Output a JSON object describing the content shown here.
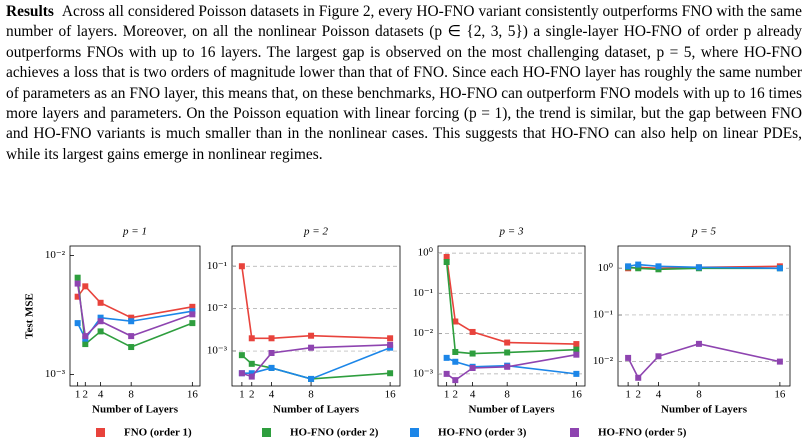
{
  "text": {
    "heading": "Results",
    "body": "Across all considered Poisson datasets in Figure 2, every HO-FNO variant consistently outperforms FNO with the same number of layers. Moreover, on all the nonlinear Poisson datasets (p ∈ {2, 3, 5}) a single-layer HO-FNO of order p already outperforms FNOs with up to 16 layers. The largest gap is observed on the most challenging dataset, p = 5, where HO-FNO achieves a loss that is two orders of magnitude lower than that of FNO. Since each HO-FNO layer has roughly the same number of parameters as an FNO layer, this means that, on these benchmarks, HO-FNO can outperform FNO models with up to 16 times more layers and parameters. On the Poisson equation with linear forcing (p = 1), the trend is similar, but the gap between FNO and HO-FNO variants is much smaller than in the nonlinear cases. This suggests that HO-FNO can also help on linear PDEs, while its largest gains emerge in nonlinear regimes."
  },
  "chart_data": [
    {
      "type": "line",
      "title": "p = 1",
      "xlabel": "Number of Layers",
      "ylabel": "Test MSE",
      "log_y": true,
      "grid": false,
      "x": [
        1,
        2,
        4,
        8,
        16
      ],
      "xlim": [
        0,
        17
      ],
      "xticks": [
        1,
        2,
        4,
        8,
        16
      ],
      "ylim": [
        0.0008,
        0.012
      ],
      "yticks": [
        {
          "value": 0.01,
          "label": "10⁻²"
        },
        {
          "value": 0.001,
          "label": "10⁻³"
        }
      ],
      "series": [
        {
          "name": "FNO (order 1)",
          "color": "#e8433c",
          "values": [
            0.0045,
            0.0055,
            0.004,
            0.003,
            0.0037
          ]
        },
        {
          "name": "HO-FNO (order 2)",
          "color": "#2e9e3e",
          "values": [
            0.0065,
            0.0018,
            0.0023,
            0.0017,
            0.0027
          ]
        },
        {
          "name": "HO-FNO (order 3)",
          "color": "#1c86e8",
          "values": [
            0.0027,
            0.002,
            0.003,
            0.0028,
            0.0034
          ]
        },
        {
          "name": "HO-FNO (order 5)",
          "color": "#8e44b0",
          "values": [
            0.0058,
            0.0021,
            0.0028,
            0.0021,
            0.0032
          ]
        }
      ]
    },
    {
      "type": "line",
      "title": "p = 2",
      "xlabel": "Number of Layers",
      "log_y": true,
      "grid": true,
      "x": [
        1,
        2,
        4,
        8,
        16
      ],
      "xlim": [
        0,
        17
      ],
      "xticks": [
        1,
        2,
        4,
        8,
        16
      ],
      "ylim": [
        0.00015,
        0.3
      ],
      "yticks": [
        {
          "value": 0.1,
          "label": "10⁻¹"
        },
        {
          "value": 0.01,
          "label": "10⁻²"
        },
        {
          "value": 0.001,
          "label": "10⁻³"
        }
      ],
      "series": [
        {
          "color": "#e8433c",
          "values": [
            0.1,
            0.002,
            0.002,
            0.0023,
            0.002
          ]
        },
        {
          "color": "#2e9e3e",
          "values": [
            0.0008,
            0.0005,
            0.0004,
            0.00022,
            0.0003
          ]
        },
        {
          "color": "#1c86e8",
          "values": [
            0.0003,
            0.0003,
            0.0004,
            0.00022,
            0.0012
          ]
        },
        {
          "color": "#8e44b0",
          "values": [
            0.0003,
            0.00025,
            0.0009,
            0.0012,
            0.0014
          ]
        }
      ]
    },
    {
      "type": "line",
      "title": "p = 3",
      "xlabel": "Number of Layers",
      "log_y": true,
      "grid": true,
      "x": [
        1,
        2,
        4,
        8,
        16
      ],
      "xlim": [
        0,
        17
      ],
      "xticks": [
        1,
        2,
        4,
        8,
        16
      ],
      "ylim": [
        0.0005,
        1.5
      ],
      "yticks": [
        {
          "value": 1,
          "label": "10⁰"
        },
        {
          "value": 0.1,
          "label": "10⁻¹"
        },
        {
          "value": 0.01,
          "label": "10⁻²"
        },
        {
          "value": 0.001,
          "label": "10⁻³"
        }
      ],
      "series": [
        {
          "color": "#e8433c",
          "values": [
            0.8,
            0.02,
            0.011,
            0.006,
            0.0055
          ]
        },
        {
          "color": "#2e9e3e",
          "values": [
            0.6,
            0.0035,
            0.0032,
            0.0034,
            0.004
          ]
        },
        {
          "color": "#1c86e8",
          "values": [
            0.0025,
            0.002,
            0.0015,
            0.0016,
            0.001
          ]
        },
        {
          "color": "#8e44b0",
          "values": [
            0.001,
            0.0007,
            0.0014,
            0.0015,
            0.003
          ]
        }
      ]
    },
    {
      "type": "line",
      "title": "p = 5",
      "xlabel": "Number of Layers",
      "log_y": true,
      "grid": true,
      "x": [
        1,
        2,
        4,
        8,
        16
      ],
      "xlim": [
        0,
        17
      ],
      "xticks": [
        1,
        2,
        4,
        8,
        16
      ],
      "ylim": [
        0.003,
        3
      ],
      "yticks": [
        {
          "value": 1,
          "label": "10⁰"
        },
        {
          "value": 0.1,
          "label": "10⁻¹"
        },
        {
          "value": 0.01,
          "label": "10⁻²"
        }
      ],
      "series": [
        {
          "color": "#e8433c",
          "values": [
            1.0,
            1.05,
            1.0,
            1.05,
            1.1
          ]
        },
        {
          "color": "#2e9e3e",
          "values": [
            1.05,
            1.0,
            0.95,
            1.0,
            1.0
          ]
        },
        {
          "color": "#1c86e8",
          "values": [
            1.1,
            1.2,
            1.1,
            1.05,
            1.0
          ]
        },
        {
          "color": "#8e44b0",
          "values": [
            0.012,
            0.0045,
            0.013,
            0.024,
            0.01
          ]
        }
      ]
    }
  ]
}
